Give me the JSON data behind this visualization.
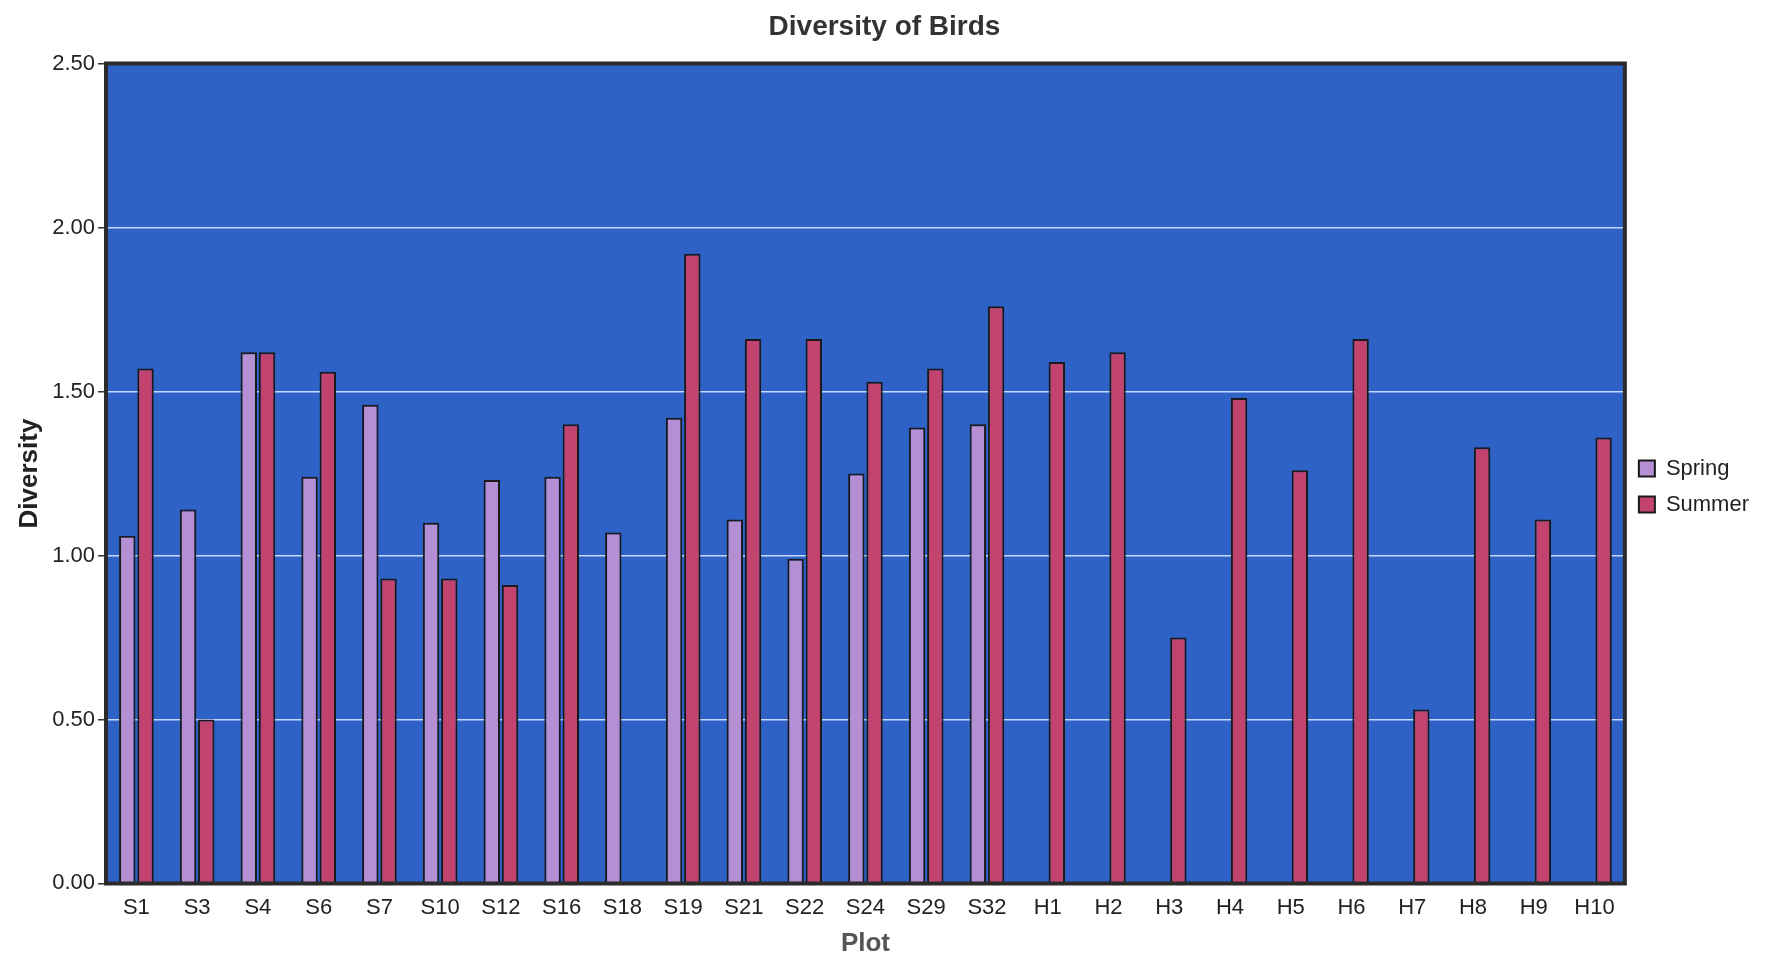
{
  "chart_data": {
    "type": "bar",
    "title": "Diversity of Birds",
    "xlabel": "Plot",
    "ylabel": "Diversity",
    "categories": [
      "S1",
      "S3",
      "S4",
      "S6",
      "S7",
      "S10",
      "S12",
      "S16",
      "S18",
      "S19",
      "S21",
      "S22",
      "S24",
      "S29",
      "S32",
      "H1",
      "H2",
      "H3",
      "H4",
      "H5",
      "H6",
      "H7",
      "H8",
      "H9",
      "H10"
    ],
    "series": [
      {
        "name": "Spring",
        "color": "#b48fd4",
        "values": [
          1.06,
          1.14,
          1.62,
          1.24,
          1.46,
          1.1,
          1.23,
          1.24,
          1.07,
          1.42,
          1.11,
          0.99,
          1.25,
          1.39,
          1.4,
          null,
          null,
          null,
          null,
          null,
          null,
          null,
          null,
          null,
          null
        ]
      },
      {
        "name": "Summer",
        "color": "#c2436e",
        "values": [
          1.57,
          0.5,
          1.62,
          1.56,
          0.93,
          0.93,
          0.91,
          1.4,
          null,
          1.92,
          1.66,
          1.66,
          1.53,
          1.57,
          1.76,
          1.59,
          1.62,
          0.75,
          1.48,
          1.26,
          1.66,
          0.53,
          1.33,
          1.11,
          1.36
        ]
      }
    ],
    "ylim": [
      0,
      2.5
    ],
    "yticks": [
      {
        "value": 0,
        "label": "0.00"
      },
      {
        "value": 0.5,
        "label": "0.50"
      },
      {
        "value": 1,
        "label": "1.00"
      },
      {
        "value": 1.5,
        "label": "1.50"
      },
      {
        "value": 2,
        "label": "2.00"
      },
      {
        "value": 2.5,
        "label": "2.50"
      }
    ],
    "grid": "y",
    "legend": "right"
  }
}
